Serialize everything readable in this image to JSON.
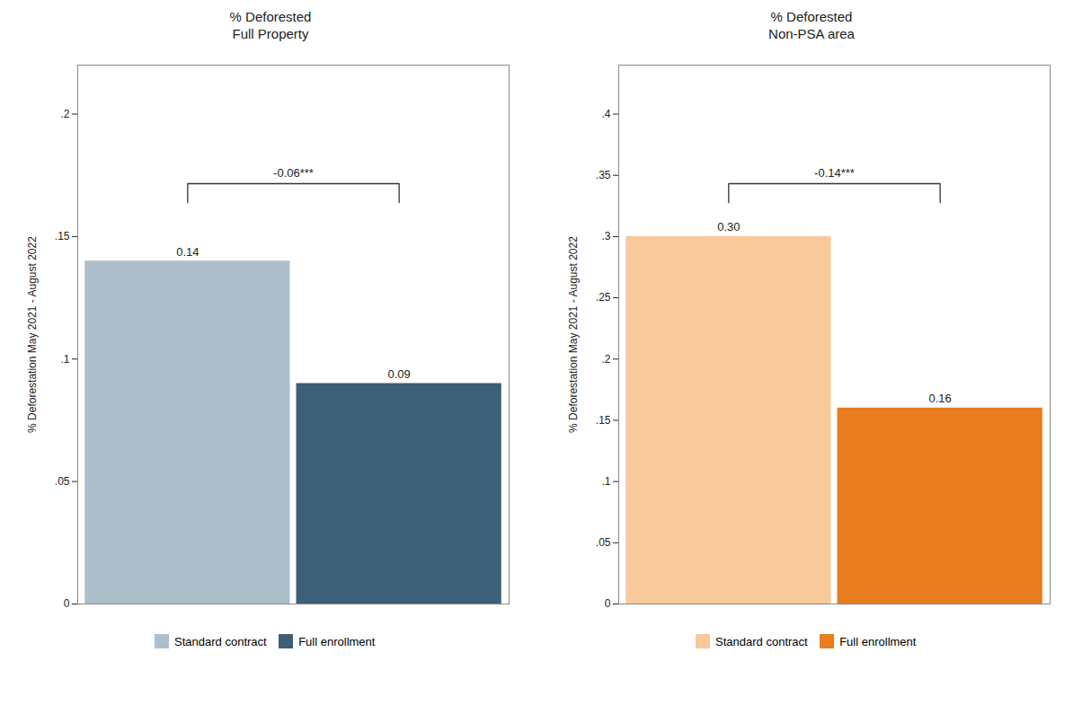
{
  "chart_data": [
    {
      "type": "bar",
      "title": "% Deforested\nFull Property",
      "ylabel": "% Deforestation May 2021 - August 2022",
      "categories": [
        null
      ],
      "series": [
        {
          "name": "Standard contract",
          "color": "#adbfcb",
          "values": [
            0.14
          ]
        },
        {
          "name": "Full enrollment",
          "color": "#3d5f77",
          "values": [
            0.09
          ]
        }
      ],
      "ylim": [
        0,
        0.22
      ],
      "yticks": [
        0,
        {
          "value": 0.05,
          "label": ".05"
        },
        {
          "value": 0.1,
          "label": ".1"
        },
        {
          "value": 0.15,
          "label": ".15"
        },
        {
          "value": 0.2,
          "label": ".2"
        }
      ],
      "data_labels": true,
      "annotations": [
        "-0.06***"
      ],
      "legend": "bottom",
      "tick_labels": "y",
      "grid": false
    },
    {
      "type": "bar",
      "title": "% Deforested\nNon-PSA area",
      "ylabel": "% Deforestation May 2021 - August 2022",
      "categories": [
        null
      ],
      "series": [
        {
          "name": "Standard contract",
          "color": "#f9c89b",
          "values": [
            0.3
          ],
          "value_labels": [
            "0.30"
          ]
        },
        {
          "name": "Full enrollment",
          "color": "#e87c1e",
          "values": [
            0.16
          ]
        }
      ],
      "ylim": [
        0,
        0.44
      ],
      "yticks": [
        0,
        {
          "value": 0.05,
          "label": ".05"
        },
        {
          "value": 0.1,
          "label": ".1"
        },
        {
          "value": 0.15,
          "label": ".15"
        },
        {
          "value": 0.2,
          "label": ".2"
        },
        {
          "value": 0.25,
          "label": ".25"
        },
        {
          "value": 0.3,
          "label": ".3"
        },
        {
          "value": 0.35,
          "label": ".35"
        },
        {
          "value": 0.4,
          "label": ".4"
        }
      ],
      "data_labels": true,
      "annotations": [
        "-0.14***"
      ],
      "legend": "bottom",
      "tick_labels": "y",
      "grid": false
    }
  ]
}
